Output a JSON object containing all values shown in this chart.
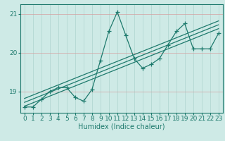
{
  "xlabel": "Humidex (Indice chaleur)",
  "bg_color": "#ceeae6",
  "line_color": "#1e7a6d",
  "grid_color_v": "#aed4ce",
  "grid_color_h": "#d4a0a0",
  "x_data": [
    0,
    1,
    2,
    3,
    4,
    5,
    6,
    7,
    8,
    9,
    10,
    11,
    12,
    13,
    14,
    15,
    16,
    17,
    18,
    19,
    20,
    21,
    22,
    23
  ],
  "y_data": [
    18.6,
    18.6,
    18.8,
    19.0,
    19.1,
    19.1,
    18.85,
    18.75,
    19.05,
    19.8,
    20.55,
    21.05,
    20.45,
    19.85,
    19.6,
    19.7,
    19.85,
    20.2,
    20.55,
    20.75,
    20.1,
    20.1,
    20.1,
    20.5
  ],
  "ylim": [
    18.45,
    21.25
  ],
  "yticks": [
    19,
    20,
    21
  ],
  "xticks": [
    0,
    1,
    2,
    3,
    4,
    5,
    6,
    7,
    8,
    9,
    10,
    11,
    12,
    13,
    14,
    15,
    16,
    17,
    18,
    19,
    20,
    21,
    22,
    23
  ],
  "trend_lines": [
    {
      "x0": 0,
      "y0": 18.62,
      "x1": 23,
      "y1": 20.62
    },
    {
      "x0": 0,
      "y0": 18.72,
      "x1": 23,
      "y1": 20.72
    },
    {
      "x0": 0,
      "y0": 18.82,
      "x1": 23,
      "y1": 20.82
    }
  ],
  "marker": "+",
  "markersize": 4,
  "linewidth": 0.9,
  "label_fontsize": 7,
  "tick_fontsize": 6.5
}
